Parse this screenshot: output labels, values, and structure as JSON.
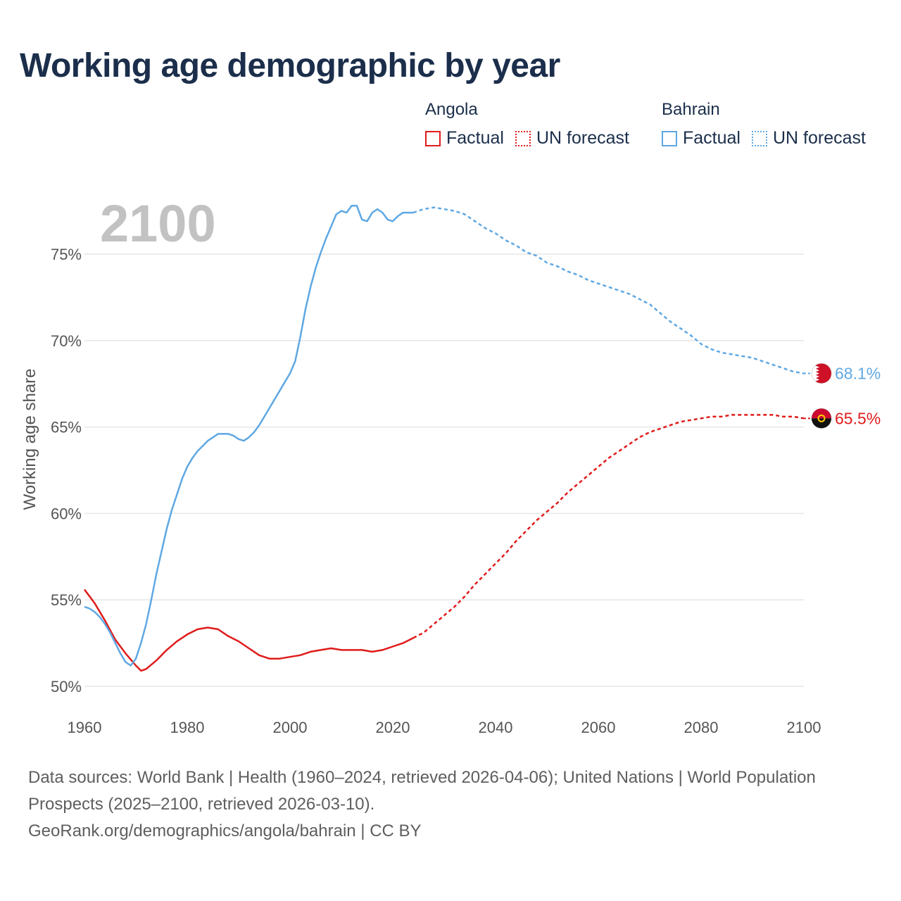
{
  "title": "Working age demographic by year",
  "year_overlay": "2100",
  "colors": {
    "angola": "#e01b1b",
    "bahrain": "#5fa8e3",
    "grid": "#e6e6e6",
    "text_dark": "#1b2e4b",
    "text_muted": "#555555",
    "overlay": "#c2c2c2"
  },
  "legend": {
    "groups": [
      {
        "name": "Angola",
        "factual_label": "Factual",
        "forecast_label": "UN forecast",
        "color": "#e01b1b"
      },
      {
        "name": "Bahrain",
        "factual_label": "Factual",
        "forecast_label": "UN forecast",
        "color": "#5fa8e3"
      }
    ]
  },
  "chart_data": {
    "type": "line",
    "title": "Working age demographic by year",
    "xlabel": "",
    "ylabel": "Working age share",
    "xlim": [
      1960,
      2100
    ],
    "ylim": [
      50,
      77
    ],
    "x_ticks": [
      1960,
      1980,
      2000,
      2020,
      2040,
      2060,
      2080,
      2100
    ],
    "y_ticks": [
      50,
      55,
      60,
      65,
      70,
      75
    ],
    "y_tick_labels": [
      "50%",
      "55%",
      "60%",
      "65%",
      "70%",
      "75%"
    ],
    "factual_end_year": 2024,
    "series": [
      {
        "name": "Angola",
        "color": "#e01b1b",
        "end_label": "65.5%",
        "points": [
          [
            1960,
            55.6
          ],
          [
            1962,
            54.8
          ],
          [
            1964,
            53.8
          ],
          [
            1966,
            52.7
          ],
          [
            1968,
            51.9
          ],
          [
            1970,
            51.2
          ],
          [
            1971,
            50.9
          ],
          [
            1972,
            51.0
          ],
          [
            1974,
            51.5
          ],
          [
            1976,
            52.1
          ],
          [
            1978,
            52.6
          ],
          [
            1980,
            53.0
          ],
          [
            1982,
            53.3
          ],
          [
            1984,
            53.4
          ],
          [
            1986,
            53.3
          ],
          [
            1988,
            52.9
          ],
          [
            1990,
            52.6
          ],
          [
            1992,
            52.2
          ],
          [
            1994,
            51.8
          ],
          [
            1996,
            51.6
          ],
          [
            1998,
            51.6
          ],
          [
            2000,
            51.7
          ],
          [
            2002,
            51.8
          ],
          [
            2004,
            52.0
          ],
          [
            2006,
            52.1
          ],
          [
            2008,
            52.2
          ],
          [
            2010,
            52.1
          ],
          [
            2012,
            52.1
          ],
          [
            2014,
            52.1
          ],
          [
            2016,
            52.0
          ],
          [
            2018,
            52.1
          ],
          [
            2020,
            52.3
          ],
          [
            2022,
            52.5
          ],
          [
            2024,
            52.8
          ],
          [
            2026,
            53.1
          ],
          [
            2028,
            53.6
          ],
          [
            2030,
            54.1
          ],
          [
            2032,
            54.6
          ],
          [
            2034,
            55.2
          ],
          [
            2036,
            55.9
          ],
          [
            2038,
            56.5
          ],
          [
            2040,
            57.1
          ],
          [
            2042,
            57.7
          ],
          [
            2044,
            58.4
          ],
          [
            2046,
            59.0
          ],
          [
            2048,
            59.6
          ],
          [
            2050,
            60.1
          ],
          [
            2052,
            60.6
          ],
          [
            2054,
            61.2
          ],
          [
            2056,
            61.7
          ],
          [
            2058,
            62.2
          ],
          [
            2060,
            62.7
          ],
          [
            2062,
            63.2
          ],
          [
            2064,
            63.6
          ],
          [
            2066,
            64.0
          ],
          [
            2068,
            64.4
          ],
          [
            2070,
            64.7
          ],
          [
            2072,
            64.9
          ],
          [
            2074,
            65.1
          ],
          [
            2076,
            65.3
          ],
          [
            2078,
            65.4
          ],
          [
            2080,
            65.5
          ],
          [
            2082,
            65.6
          ],
          [
            2084,
            65.6
          ],
          [
            2086,
            65.7
          ],
          [
            2088,
            65.7
          ],
          [
            2090,
            65.7
          ],
          [
            2092,
            65.7
          ],
          [
            2094,
            65.7
          ],
          [
            2096,
            65.6
          ],
          [
            2098,
            65.6
          ],
          [
            2100,
            65.5
          ]
        ]
      },
      {
        "name": "Bahrain",
        "color": "#5fa8e3",
        "end_label": "68.1%",
        "points": [
          [
            1960,
            54.6
          ],
          [
            1961,
            54.5
          ],
          [
            1962,
            54.3
          ],
          [
            1963,
            54.0
          ],
          [
            1964,
            53.6
          ],
          [
            1965,
            53.1
          ],
          [
            1966,
            52.5
          ],
          [
            1967,
            51.9
          ],
          [
            1968,
            51.4
          ],
          [
            1969,
            51.2
          ],
          [
            1970,
            51.6
          ],
          [
            1971,
            52.5
          ],
          [
            1972,
            53.6
          ],
          [
            1973,
            55.0
          ],
          [
            1974,
            56.5
          ],
          [
            1975,
            57.8
          ],
          [
            1976,
            59.1
          ],
          [
            1977,
            60.2
          ],
          [
            1978,
            61.1
          ],
          [
            1979,
            62.0
          ],
          [
            1980,
            62.7
          ],
          [
            1981,
            63.2
          ],
          [
            1982,
            63.6
          ],
          [
            1983,
            63.9
          ],
          [
            1984,
            64.2
          ],
          [
            1985,
            64.4
          ],
          [
            1986,
            64.6
          ],
          [
            1987,
            64.6
          ],
          [
            1988,
            64.6
          ],
          [
            1989,
            64.5
          ],
          [
            1990,
            64.3
          ],
          [
            1991,
            64.2
          ],
          [
            1992,
            64.4
          ],
          [
            1993,
            64.7
          ],
          [
            1994,
            65.1
          ],
          [
            1995,
            65.6
          ],
          [
            1996,
            66.1
          ],
          [
            1997,
            66.6
          ],
          [
            1998,
            67.1
          ],
          [
            1999,
            67.6
          ],
          [
            2000,
            68.1
          ],
          [
            2001,
            68.8
          ],
          [
            2002,
            70.2
          ],
          [
            2003,
            71.8
          ],
          [
            2004,
            73.1
          ],
          [
            2005,
            74.2
          ],
          [
            2006,
            75.1
          ],
          [
            2007,
            75.9
          ],
          [
            2008,
            76.6
          ],
          [
            2009,
            77.3
          ],
          [
            2010,
            77.5
          ],
          [
            2011,
            77.4
          ],
          [
            2012,
            77.8
          ],
          [
            2013,
            77.8
          ],
          [
            2014,
            77.0
          ],
          [
            2015,
            76.9
          ],
          [
            2016,
            77.4
          ],
          [
            2017,
            77.6
          ],
          [
            2018,
            77.4
          ],
          [
            2019,
            77.0
          ],
          [
            2020,
            76.9
          ],
          [
            2021,
            77.2
          ],
          [
            2022,
            77.4
          ],
          [
            2023,
            77.4
          ],
          [
            2024,
            77.4
          ],
          [
            2026,
            77.6
          ],
          [
            2028,
            77.7
          ],
          [
            2030,
            77.6
          ],
          [
            2032,
            77.5
          ],
          [
            2034,
            77.3
          ],
          [
            2036,
            76.9
          ],
          [
            2038,
            76.5
          ],
          [
            2040,
            76.2
          ],
          [
            2042,
            75.8
          ],
          [
            2044,
            75.5
          ],
          [
            2046,
            75.1
          ],
          [
            2048,
            74.9
          ],
          [
            2050,
            74.5
          ],
          [
            2052,
            74.3
          ],
          [
            2054,
            74.0
          ],
          [
            2056,
            73.8
          ],
          [
            2058,
            73.5
          ],
          [
            2060,
            73.3
          ],
          [
            2062,
            73.1
          ],
          [
            2064,
            72.9
          ],
          [
            2066,
            72.7
          ],
          [
            2068,
            72.4
          ],
          [
            2070,
            72.1
          ],
          [
            2072,
            71.6
          ],
          [
            2074,
            71.1
          ],
          [
            2076,
            70.7
          ],
          [
            2078,
            70.3
          ],
          [
            2080,
            69.8
          ],
          [
            2082,
            69.5
          ],
          [
            2084,
            69.3
          ],
          [
            2086,
            69.2
          ],
          [
            2088,
            69.1
          ],
          [
            2090,
            69.0
          ],
          [
            2092,
            68.8
          ],
          [
            2094,
            68.6
          ],
          [
            2096,
            68.4
          ],
          [
            2098,
            68.2
          ],
          [
            2100,
            68.1
          ]
        ]
      }
    ]
  },
  "footer": {
    "sources": "Data sources: World Bank | Health (1960–2024, retrieved 2026-04-06); United Nations | World Population Prospects (2025–2100, retrieved 2026-03-10).",
    "attribution": "GeoRank.org/demographics/angola/bahrain | CC BY"
  }
}
